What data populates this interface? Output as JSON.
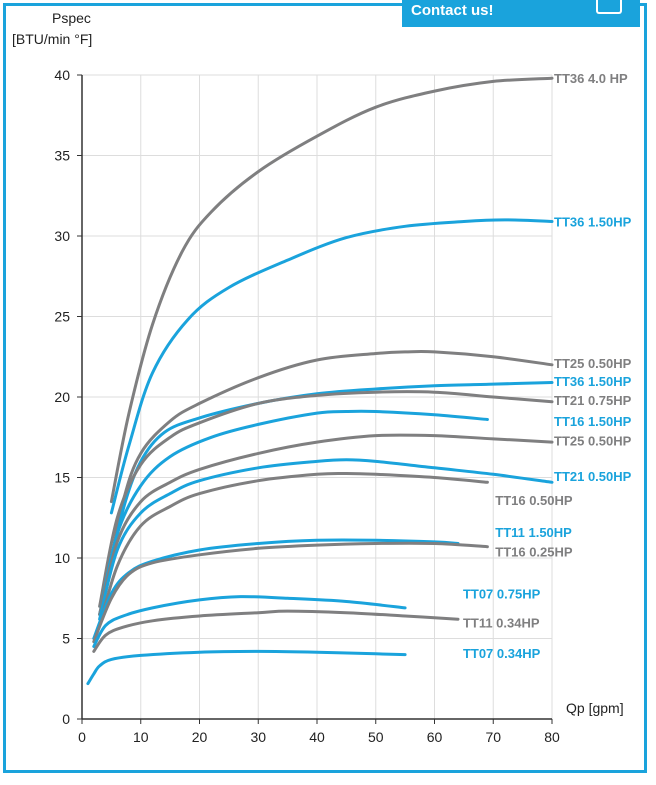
{
  "header": {
    "contact_label": "Contact us!"
  },
  "chart_data": {
    "type": "line",
    "ylabel_line1": "Pspec",
    "ylabel_line2": "[BTU/min °F]",
    "xlabel": "Qp [gpm]",
    "xlim": [
      0,
      80
    ],
    "ylim": [
      0,
      40
    ],
    "xticks": [
      0,
      10,
      20,
      30,
      40,
      50,
      60,
      70,
      80
    ],
    "yticks": [
      0,
      5,
      10,
      15,
      20,
      25,
      30,
      35,
      40
    ],
    "grid": true,
    "colors": {
      "gray": "#7f7f80",
      "blue": "#1aa3dc",
      "axis": "#333333",
      "grid": "#dddddd"
    },
    "series": [
      {
        "name": "TT36 4.0 HP",
        "color": "gray",
        "points": [
          [
            5,
            13.5
          ],
          [
            8,
            19
          ],
          [
            12,
            24.5
          ],
          [
            17,
            29
          ],
          [
            22,
            31.5
          ],
          [
            30,
            34
          ],
          [
            40,
            36.2
          ],
          [
            50,
            38
          ],
          [
            60,
            39
          ],
          [
            70,
            39.6
          ],
          [
            80,
            39.8
          ]
        ]
      },
      {
        "name": "TT36 1.50HP",
        "color": "blue",
        "points": [
          [
            5,
            12.8
          ],
          [
            8,
            17
          ],
          [
            12,
            21.5
          ],
          [
            18,
            24.8
          ],
          [
            25,
            26.8
          ],
          [
            35,
            28.5
          ],
          [
            45,
            29.9
          ],
          [
            55,
            30.6
          ],
          [
            65,
            30.9
          ],
          [
            72,
            31
          ],
          [
            80,
            30.9
          ]
        ]
      },
      {
        "name": "TT25 0.50HP",
        "color": "gray",
        "points": [
          [
            4,
            8
          ],
          [
            7,
            13.5
          ],
          [
            10,
            16.5
          ],
          [
            15,
            18.5
          ],
          [
            20,
            19.6
          ],
          [
            30,
            21.2
          ],
          [
            40,
            22.3
          ],
          [
            50,
            22.7
          ],
          [
            55,
            22.8
          ],
          [
            60,
            22.8
          ],
          [
            70,
            22.5
          ],
          [
            80,
            22
          ]
        ]
      },
      {
        "name": "TT36 1.50HP",
        "color": "blue",
        "points": [
          [
            4,
            8
          ],
          [
            7,
            13
          ],
          [
            10,
            16
          ],
          [
            14,
            17.8
          ],
          [
            20,
            18.7
          ],
          [
            30,
            19.6
          ],
          [
            40,
            20.2
          ],
          [
            50,
            20.5
          ],
          [
            60,
            20.7
          ],
          [
            70,
            20.8
          ],
          [
            80,
            20.9
          ]
        ]
      },
      {
        "name": "TT21 0.75HP",
        "color": "gray",
        "points": [
          [
            3,
            7
          ],
          [
            6,
            12.5
          ],
          [
            10,
            15.8
          ],
          [
            15,
            17.5
          ],
          [
            20,
            18.4
          ],
          [
            30,
            19.6
          ],
          [
            40,
            20.1
          ],
          [
            50,
            20.3
          ],
          [
            60,
            20.3
          ],
          [
            70,
            20
          ],
          [
            80,
            19.7
          ]
        ]
      },
      {
        "name": "TT16 1.50HP",
        "color": "blue",
        "points": [
          [
            3,
            6.5
          ],
          [
            6,
            11.5
          ],
          [
            10,
            14.5
          ],
          [
            15,
            16.3
          ],
          [
            22,
            17.5
          ],
          [
            30,
            18.3
          ],
          [
            40,
            19
          ],
          [
            45,
            19.1
          ],
          [
            50,
            19.1
          ],
          [
            60,
            18.9
          ],
          [
            69,
            18.6
          ]
        ]
      },
      {
        "name": "TT25 0.50HP",
        "color": "gray",
        "points": [
          [
            3,
            6.5
          ],
          [
            6,
            11
          ],
          [
            10,
            13.5
          ],
          [
            15,
            14.7
          ],
          [
            20,
            15.5
          ],
          [
            30,
            16.5
          ],
          [
            40,
            17.2
          ],
          [
            50,
            17.6
          ],
          [
            60,
            17.6
          ],
          [
            70,
            17.4
          ],
          [
            80,
            17.2
          ]
        ]
      },
      {
        "name": "TT21 0.50HP",
        "color": "blue",
        "points": [
          [
            3,
            6.2
          ],
          [
            6,
            10.5
          ],
          [
            10,
            12.8
          ],
          [
            15,
            14
          ],
          [
            20,
            14.8
          ],
          [
            30,
            15.6
          ],
          [
            40,
            16
          ],
          [
            45,
            16.1
          ],
          [
            50,
            16
          ],
          [
            60,
            15.6
          ],
          [
            70,
            15.2
          ],
          [
            80,
            14.7
          ]
        ]
      },
      {
        "name": "TT16 0.50HP",
        "color": "gray",
        "points": [
          [
            3,
            5.8
          ],
          [
            6,
            9.5
          ],
          [
            10,
            12
          ],
          [
            15,
            13.2
          ],
          [
            20,
            14
          ],
          [
            30,
            14.8
          ],
          [
            40,
            15.2
          ],
          [
            45,
            15.25
          ],
          [
            50,
            15.2
          ],
          [
            60,
            15
          ],
          [
            69,
            14.7
          ]
        ]
      },
      {
        "name": "TT11 1.50HP",
        "color": "blue",
        "points": [
          [
            2,
            5
          ],
          [
            5,
            7.8
          ],
          [
            8,
            9.1
          ],
          [
            12,
            9.8
          ],
          [
            20,
            10.5
          ],
          [
            30,
            10.9
          ],
          [
            40,
            11.1
          ],
          [
            50,
            11.1
          ],
          [
            60,
            11
          ],
          [
            64,
            10.9
          ]
        ]
      },
      {
        "name": "TT16 0.25HP",
        "color": "gray",
        "points": [
          [
            2,
            4.8
          ],
          [
            5,
            7.5
          ],
          [
            8,
            9
          ],
          [
            12,
            9.7
          ],
          [
            20,
            10.2
          ],
          [
            30,
            10.6
          ],
          [
            40,
            10.8
          ],
          [
            50,
            10.9
          ],
          [
            60,
            10.9
          ],
          [
            69,
            10.7
          ]
        ]
      },
      {
        "name": "TT07 0.75HP",
        "color": "blue",
        "points": [
          [
            2,
            4.5
          ],
          [
            4,
            5.8
          ],
          [
            7,
            6.4
          ],
          [
            12,
            6.9
          ],
          [
            20,
            7.4
          ],
          [
            27,
            7.6
          ],
          [
            35,
            7.5
          ],
          [
            45,
            7.3
          ],
          [
            55,
            6.9
          ]
        ]
      },
      {
        "name": "TT11 0.34HP",
        "color": "gray",
        "points": [
          [
            2,
            4.2
          ],
          [
            4,
            5.2
          ],
          [
            7,
            5.7
          ],
          [
            12,
            6.1
          ],
          [
            20,
            6.4
          ],
          [
            30,
            6.6
          ],
          [
            35,
            6.7
          ],
          [
            45,
            6.6
          ],
          [
            55,
            6.4
          ],
          [
            64,
            6.2
          ]
        ]
      },
      {
        "name": "TT07 0.34HP",
        "color": "blue",
        "points": [
          [
            1,
            2.2
          ],
          [
            2,
            2.8
          ],
          [
            3,
            3.3
          ],
          [
            5,
            3.7
          ],
          [
            10,
            3.95
          ],
          [
            20,
            4.15
          ],
          [
            30,
            4.2
          ],
          [
            40,
            4.15
          ],
          [
            50,
            4.05
          ],
          [
            55,
            4
          ]
        ]
      }
    ],
    "series_labels": [
      {
        "text": "TT36 4.0 HP",
        "color": "gray",
        "x": 80,
        "y": 39.8
      },
      {
        "text": "TT36 1.50HP",
        "color": "blue",
        "x": 80,
        "y": 30.9
      },
      {
        "text": "TT25 0.50HP",
        "color": "gray",
        "x": 80,
        "y": 22.1
      },
      {
        "text": "TT36 1.50HP",
        "color": "blue",
        "x": 80,
        "y": 21.0
      },
      {
        "text": "TT21 0.75HP",
        "color": "gray",
        "x": 80,
        "y": 19.8
      },
      {
        "text": "TT16 1.50HP",
        "color": "blue",
        "x": 80,
        "y": 18.5
      },
      {
        "text": "TT25 0.50HP",
        "color": "gray",
        "x": 80,
        "y": 17.3
      },
      {
        "text": "TT21 0.50HP",
        "color": "blue",
        "x": 80,
        "y": 15.1
      },
      {
        "text": "TT16 0.50HP",
        "color": "gray",
        "x": 70,
        "y": 13.6
      },
      {
        "text": "TT11 1.50HP",
        "color": "blue",
        "x": 70,
        "y": 11.6
      },
      {
        "text": "TT16 0.25HP",
        "color": "gray",
        "x": 70,
        "y": 10.4
      },
      {
        "text": "TT07 0.75HP",
        "color": "blue",
        "x": 64.5,
        "y": 7.8
      },
      {
        "text": "TT11 0.34HP",
        "color": "gray",
        "x": 64.5,
        "y": 6.0
      },
      {
        "text": "TT07 0.34HP",
        "color": "blue",
        "x": 64.5,
        "y": 4.1
      }
    ]
  }
}
